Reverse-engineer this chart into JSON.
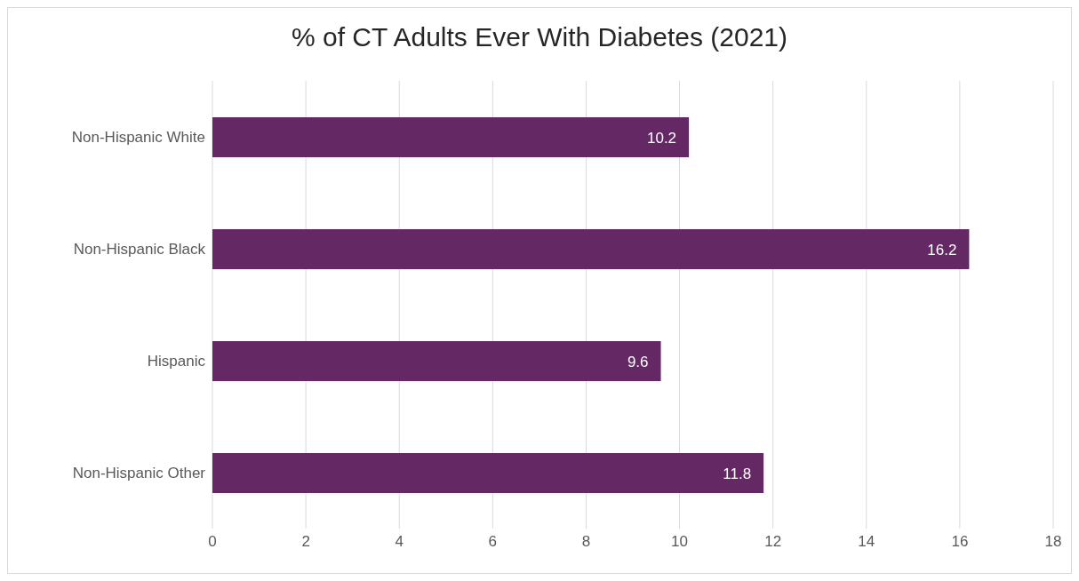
{
  "chart_data": {
    "type": "bar",
    "orientation": "horizontal",
    "title": "% of CT Adults Ever With Diabetes (2021)",
    "categories": [
      "Non-Hispanic White",
      "Non-Hispanic Black",
      "Hispanic",
      "Non-Hispanic Other"
    ],
    "values": [
      10.2,
      16.2,
      9.6,
      11.8
    ],
    "color": "#642864",
    "xlim": [
      0,
      18
    ],
    "xticks": [
      0,
      2,
      4,
      6,
      8,
      10,
      12,
      14,
      16,
      18
    ],
    "grid": "x",
    "data_labels": true
  }
}
